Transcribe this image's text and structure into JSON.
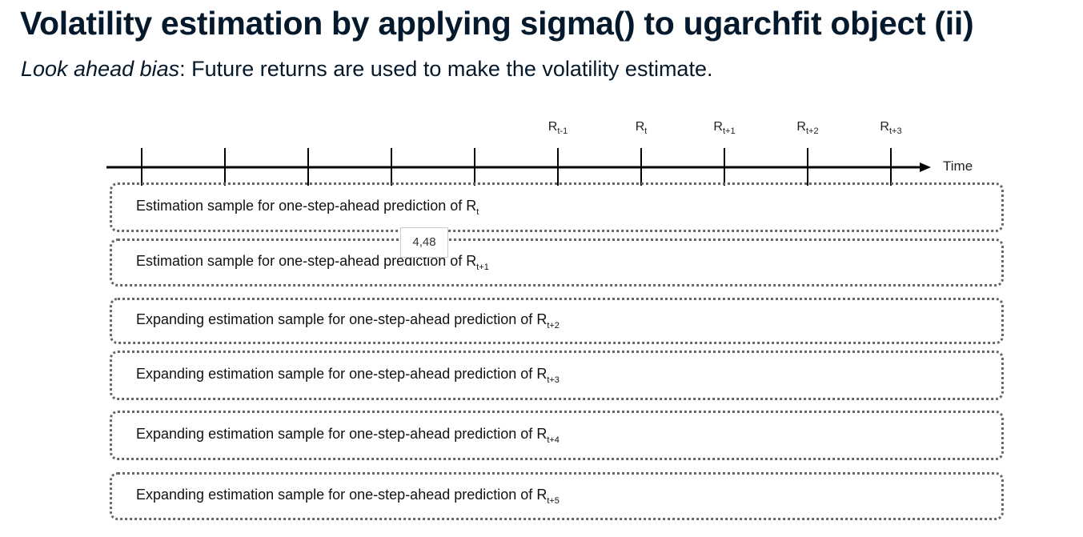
{
  "header": {
    "title": "Volatility estimation by applying sigma() to ugarchfit object (ii)",
    "subtitle": {
      "emphasis": "Look ahead bias",
      "text": ": Future returns are used to make the volatility estimate."
    }
  },
  "diagram": {
    "timeline": {
      "labels": [
        {
          "base": "R",
          "sub": "t-1"
        },
        {
          "base": "R",
          "sub": "t"
        },
        {
          "base": "R",
          "sub": "t+1"
        },
        {
          "base": "R",
          "sub": "t+2"
        },
        {
          "base": "R",
          "sub": "t+3"
        }
      ],
      "axis_label": "Time"
    },
    "boxes": [
      {
        "text": "Estimation sample for one-step-ahead prediction of",
        "base": "R",
        "sub": "t"
      },
      {
        "text": "Estimation sample for one-step-ahead prediction of",
        "base": "R",
        "sub": "t+1"
      },
      {
        "text": "Expanding estimation sample for one-step-ahead prediction of",
        "base": "R",
        "sub": "t+2"
      },
      {
        "text": "Expanding estimation sample for one-step-ahead prediction of",
        "base": "R",
        "sub": "t+3"
      },
      {
        "text": "Expanding estimation sample for one-step-ahead prediction of",
        "base": "R",
        "sub": "t+4"
      },
      {
        "text": "Expanding estimation sample for one-step-ahead prediction of",
        "base": "R",
        "sub": "t+5"
      }
    ],
    "tooltip": "4,48"
  }
}
